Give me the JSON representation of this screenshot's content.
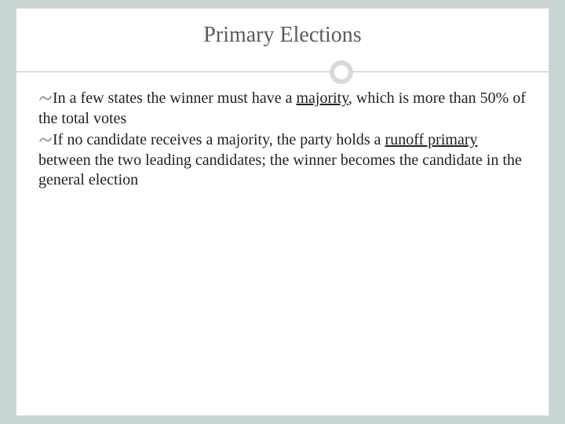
{
  "slide": {
    "title": "Primary Elections",
    "background_color": "#c9d4d4",
    "slide_background": "#ffffff",
    "title_color": "#5b5b5b",
    "title_fontsize": 28,
    "body_fontsize": 20,
    "divider_color": "#bfbfbf",
    "ring_color": "#d9d9d9",
    "bullet_glyph": "་",
    "bullets": [
      {
        "pre": "In a few states the winner must have a ",
        "underlined": "majority",
        "post": ", which is more than 50% of the total votes"
      },
      {
        "pre": "If no candidate receives a majority, the party holds a ",
        "underlined": "runoff primary",
        "post": " between the two leading candidates; the winner becomes the candidate in the general election"
      }
    ]
  }
}
